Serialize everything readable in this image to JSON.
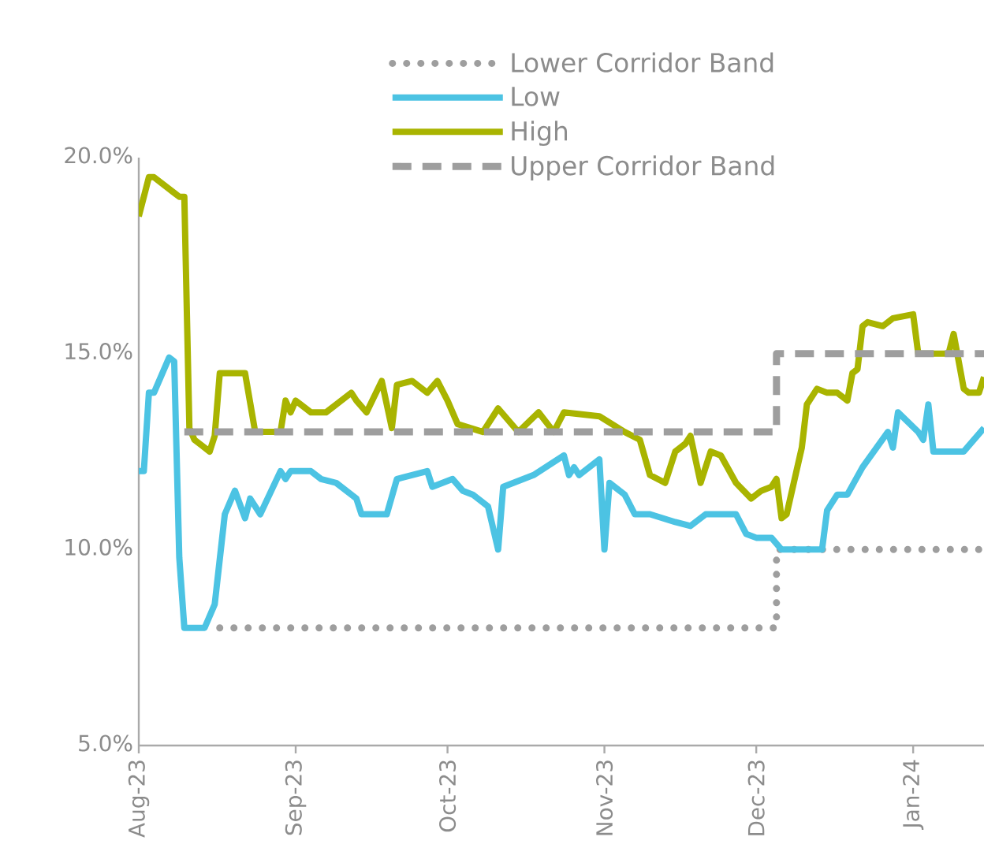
{
  "chart_data": {
    "type": "line",
    "xlim": [
      "2023-08-01",
      "2024-01-15"
    ],
    "ylim": [
      5,
      20
    ],
    "xticks": [
      {
        "value": "2023-08-01",
        "label": "Aug-23"
      },
      {
        "value": "2023-09-01",
        "label": "Sep-23"
      },
      {
        "value": "2023-10-01",
        "label": "Oct-23"
      },
      {
        "value": "2023-11-01",
        "label": "Nov-23"
      },
      {
        "value": "2023-12-01",
        "label": "Dec-23"
      },
      {
        "value": "2024-01-01",
        "label": "Jan-24"
      }
    ],
    "yticks": [
      {
        "value": 5,
        "label": "5.0%"
      },
      {
        "value": 10,
        "label": "10.0%"
      },
      {
        "value": 15,
        "label": "15.0%"
      },
      {
        "value": 20,
        "label": "20.0%"
      }
    ],
    "grid": false,
    "legend": "top right",
    "series": [
      {
        "name": "Lower Corridor Band",
        "color": "#9e9e9e",
        "line_style": "dotted",
        "x": [
          "2023-08-17",
          "2023-12-05",
          "2023-12-05",
          "2024-01-15"
        ],
        "values": [
          8,
          8,
          10,
          10
        ]
      },
      {
        "name": "Low",
        "color": "#4cc3e3",
        "line_style": "solid",
        "x": [
          "2023-08-01",
          "2023-08-02",
          "2023-08-03",
          "2023-08-04",
          "2023-08-07",
          "2023-08-08",
          "2023-08-09",
          "2023-08-10",
          "2023-08-14",
          "2023-08-16",
          "2023-08-18",
          "2023-08-20",
          "2023-08-22",
          "2023-08-23",
          "2023-08-25",
          "2023-08-29",
          "2023-08-30",
          "2023-08-31",
          "2023-09-04",
          "2023-09-06",
          "2023-09-09",
          "2023-09-13",
          "2023-09-14",
          "2023-09-19",
          "2023-09-21",
          "2023-09-27",
          "2023-09-28",
          "2023-10-02",
          "2023-10-04",
          "2023-10-06",
          "2023-10-09",
          "2023-10-11",
          "2023-10-12",
          "2023-10-18",
          "2023-10-24",
          "2023-10-25",
          "2023-10-26",
          "2023-10-27",
          "2023-10-31",
          "2023-11-01",
          "2023-11-02",
          "2023-11-05",
          "2023-11-07",
          "2023-11-10",
          "2023-11-15",
          "2023-11-18",
          "2023-11-21",
          "2023-11-27",
          "2023-11-29",
          "2023-12-01",
          "2023-12-04",
          "2023-12-06",
          "2023-12-14",
          "2023-12-15",
          "2023-12-17",
          "2023-12-19",
          "2023-12-22",
          "2023-12-27",
          "2023-12-28",
          "2023-12-29",
          "2024-01-02",
          "2024-01-03",
          "2024-01-04",
          "2024-01-05",
          "2024-01-06",
          "2024-01-11",
          "2024-01-15"
        ],
        "values": [
          12.0,
          12.0,
          14.0,
          14.0,
          14.9,
          14.8,
          9.8,
          8.0,
          8.0,
          8.6,
          10.9,
          11.5,
          10.8,
          11.3,
          10.9,
          12.0,
          11.8,
          12.0,
          12.0,
          11.8,
          11.7,
          11.3,
          10.9,
          10.9,
          11.8,
          12.0,
          11.6,
          11.8,
          11.5,
          11.4,
          11.1,
          10.0,
          11.6,
          11.9,
          12.4,
          11.9,
          12.1,
          11.9,
          12.3,
          10.0,
          11.7,
          11.4,
          10.9,
          10.9,
          10.7,
          10.6,
          10.9,
          10.9,
          10.4,
          10.3,
          10.3,
          10.0,
          10.0,
          11.0,
          11.4,
          11.4,
          12.1,
          13.0,
          12.6,
          13.5,
          13.0,
          12.8,
          13.7,
          12.5,
          12.5,
          12.5,
          13.1
        ]
      },
      {
        "name": "High",
        "color": "#a9b400",
        "line_style": "solid",
        "x": [
          "2023-08-01",
          "2023-08-03",
          "2023-08-04",
          "2023-08-08",
          "2023-08-09",
          "2023-08-10",
          "2023-08-11",
          "2023-08-12",
          "2023-08-15",
          "2023-08-16",
          "2023-08-17",
          "2023-08-22",
          "2023-08-24",
          "2023-08-29",
          "2023-08-30",
          "2023-08-31",
          "2023-09-01",
          "2023-09-04",
          "2023-09-07",
          "2023-09-12",
          "2023-09-13",
          "2023-09-15",
          "2023-09-18",
          "2023-09-20",
          "2023-09-21",
          "2023-09-24",
          "2023-09-27",
          "2023-09-29",
          "2023-10-01",
          "2023-10-03",
          "2023-10-08",
          "2023-10-11",
          "2023-10-15",
          "2023-10-19",
          "2023-10-22",
          "2023-10-24",
          "2023-10-31",
          "2023-11-05",
          "2023-11-08",
          "2023-11-10",
          "2023-11-13",
          "2023-11-15",
          "2023-11-17",
          "2023-11-18",
          "2023-11-20",
          "2023-11-22",
          "2023-11-24",
          "2023-11-27",
          "2023-11-30",
          "2023-12-02",
          "2023-12-04",
          "2023-12-05",
          "2023-12-06",
          "2023-12-07",
          "2023-12-10",
          "2023-12-11",
          "2023-12-13",
          "2023-12-15",
          "2023-12-17",
          "2023-12-19",
          "2023-12-20",
          "2023-12-21",
          "2023-12-22",
          "2023-12-23",
          "2023-12-26",
          "2023-12-28",
          "2024-01-01",
          "2024-01-02",
          "2024-01-08",
          "2024-01-09",
          "2024-01-11",
          "2024-01-12",
          "2024-01-14",
          "2024-01-15"
        ],
        "values": [
          18.5,
          19.5,
          19.5,
          19.1,
          19.0,
          19.0,
          13.1,
          12.8,
          12.5,
          12.9,
          14.5,
          14.5,
          13.0,
          13.0,
          13.8,
          13.5,
          13.8,
          13.5,
          13.5,
          14.0,
          13.8,
          13.5,
          14.3,
          13.1,
          14.2,
          14.3,
          14.0,
          14.3,
          13.8,
          13.2,
          13.0,
          13.6,
          13.0,
          13.5,
          13.0,
          13.5,
          13.4,
          13.0,
          12.8,
          11.9,
          11.7,
          12.5,
          12.7,
          12.9,
          11.7,
          12.5,
          12.4,
          11.7,
          11.3,
          11.5,
          11.6,
          11.8,
          10.8,
          10.9,
          12.6,
          13.7,
          14.1,
          14.0,
          14.0,
          13.8,
          14.5,
          14.6,
          15.7,
          15.8,
          15.7,
          15.9,
          16.0,
          15.0,
          15.0,
          15.5,
          14.1,
          14.0,
          14.0,
          14.4
        ]
      },
      {
        "name": "Upper Corridor Band",
        "color": "#9e9e9e",
        "line_style": "dashed",
        "x": [
          "2023-08-10",
          "2023-12-05",
          "2023-12-05",
          "2024-01-15"
        ],
        "values": [
          13,
          13,
          15,
          15
        ]
      }
    ]
  }
}
